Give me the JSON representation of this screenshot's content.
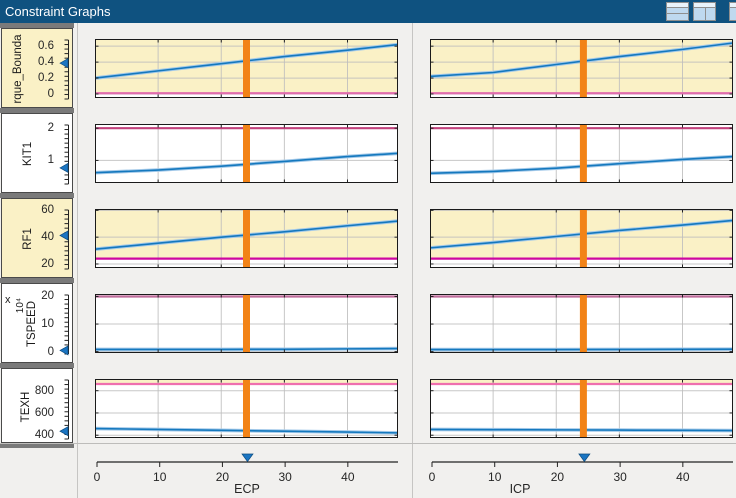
{
  "window": {
    "title": "Constraint Graphs"
  },
  "titlebar_icons": [
    {
      "name": "split-horizontal-icon"
    },
    {
      "name": "split-vertical-icon"
    },
    {
      "name": "partial-window-icon"
    }
  ],
  "colors": {
    "titlebar": "#0F5280",
    "background": "#F1F0EE",
    "panel_yellow": "#FAF1C6",
    "plot_white": "#FFFFFF",
    "grid": "#BDBDBD",
    "blue_line": "#1478BE",
    "blue_band": "#A3C9E9",
    "orange_marker": "#F28317",
    "slider_blue": "#1B75C2",
    "plot_border": "#1A1A1A"
  },
  "chart_data": {
    "type": "line",
    "x_axes": [
      {
        "name": "ECP",
        "ticks": [
          0,
          10,
          20,
          30,
          40
        ],
        "xlim": [
          0,
          48
        ],
        "marker_x": 24,
        "name_x": 169
      },
      {
        "name": "ICP",
        "ticks": [
          0,
          10,
          20,
          30,
          40
        ],
        "xlim": [
          0,
          48
        ],
        "marker_x": 24.3,
        "name_x": 107
      }
    ],
    "rows": [
      {
        "name": "rque_Bounda",
        "label_bg": "yellow",
        "yellow_above_boundary": true,
        "ylim": [
          -0.05,
          0.69
        ],
        "yticks": [
          0,
          0.2,
          0.4,
          0.6
        ],
        "boundary": {
          "y": 0.01,
          "color": "#E06CAC"
        },
        "slider_value": 0.4,
        "name_x": 16,
        "x": [
          0,
          10,
          20,
          30,
          40,
          48
        ],
        "series": [
          {
            "axis": "ECP",
            "y": [
              0.2,
              0.29,
              0.38,
              0.47,
              0.55,
              0.62
            ]
          },
          {
            "axis": "ICP",
            "y": [
              0.22,
              0.27,
              0.37,
              0.47,
              0.56,
              0.64
            ]
          }
        ]
      },
      {
        "name": "KIT1",
        "label_bg": "white",
        "yellow_above_boundary": false,
        "ylim": [
          0.3,
          2.13
        ],
        "yticks": [
          1,
          2
        ],
        "boundary": {
          "y": 2.0,
          "color": "#C2417B"
        },
        "slider_value": 0.8,
        "name_x": 26,
        "x": [
          0,
          10,
          20,
          30,
          40,
          48
        ],
        "series": [
          {
            "axis": "ECP",
            "y": [
              0.62,
              0.7,
              0.82,
              0.97,
              1.12,
              1.22
            ]
          },
          {
            "axis": "ICP",
            "y": [
              0.6,
              0.66,
              0.76,
              0.9,
              1.03,
              1.12
            ]
          }
        ]
      },
      {
        "name": "RF1",
        "label_bg": "yellow",
        "yellow_above_boundary": true,
        "ylim": [
          17,
          61
        ],
        "yticks": [
          20,
          40,
          60
        ],
        "boundary": {
          "y": 24,
          "color": "#CE07A0"
        },
        "slider_value": 42,
        "name_x": 26,
        "x": [
          0,
          10,
          20,
          30,
          40,
          48
        ],
        "series": [
          {
            "axis": "ECP",
            "y": [
              31,
              35.5,
              40,
              44,
              48.5,
              52
            ]
          },
          {
            "axis": "ICP",
            "y": [
              32,
              36,
              40.5,
              45,
              49,
              52.5
            ]
          }
        ]
      },
      {
        "name": "TSPEED",
        "label_bg": "white",
        "yellow_above_boundary": false,
        "multiplier": {
          "sign": "x",
          "value": "10⁴"
        },
        "ylim": [
          -0.5,
          20.9
        ],
        "yticks": [
          0,
          10,
          20
        ],
        "boundary": {
          "y": 20,
          "color": "#BF6C9B"
        },
        "slider_value": 0.8,
        "name_x": 30,
        "x": [
          0,
          10,
          20,
          30,
          40,
          48
        ],
        "series": [
          {
            "axis": "ECP",
            "y": [
              0.8,
              0.8,
              0.8,
              0.85,
              1.0,
              1.1
            ]
          },
          {
            "axis": "ICP",
            "y": [
              0.75,
              0.75,
              0.76,
              0.78,
              0.82,
              0.88
            ]
          }
        ]
      },
      {
        "name": "TEXH",
        "label_bg": "white",
        "yellow_above_boundary": true,
        "ylim": [
          375,
          905
        ],
        "yticks": [
          400,
          600,
          800
        ],
        "boundary": {
          "y": 860,
          "color": "#EF6FAE"
        },
        "slider_value": 445,
        "name_x": 24,
        "x": [
          0,
          10,
          20,
          30,
          40,
          48
        ],
        "series": [
          {
            "axis": "ECP",
            "y": [
              460,
              452,
              444,
              436,
              428,
              421
            ]
          },
          {
            "axis": "ICP",
            "y": [
              452,
              450,
              448,
              446,
              444,
              442
            ]
          }
        ]
      }
    ]
  }
}
